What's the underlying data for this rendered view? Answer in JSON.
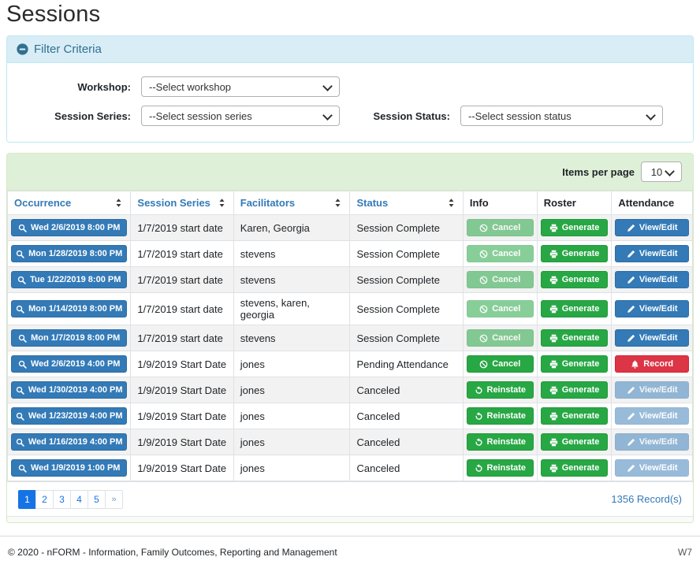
{
  "page": {
    "title": "Sessions"
  },
  "filter": {
    "title": "Filter Criteria",
    "collapse_icon": "minus-circle-icon",
    "fields": [
      {
        "label": "Workshop:",
        "value": "--Select workshop"
      },
      {
        "label": "Session Series:",
        "value": "--Select session series"
      },
      {
        "label": "Session Status:",
        "value": "--Select session status"
      }
    ]
  },
  "table": {
    "items_per_page_label": "Items per page",
    "items_per_page_value": "10",
    "columns": [
      {
        "label": "Occurrence",
        "sortable": true
      },
      {
        "label": "Session Series",
        "sortable": true
      },
      {
        "label": "Facilitators",
        "sortable": true
      },
      {
        "label": "Status",
        "sortable": true
      },
      {
        "label": "Info",
        "sortable": false
      },
      {
        "label": "Roster",
        "sortable": false
      },
      {
        "label": "Attendance",
        "sortable": false
      }
    ],
    "occurrence_icon": "search-icon",
    "rows": [
      {
        "occurrence": "Wed 2/6/2019 8:00 PM",
        "session_series": "1/7/2019 start date",
        "facilitators": "Karen, Georgia",
        "status": "Session Complete",
        "info": {
          "label": "Cancel",
          "icon": "ban-icon",
          "variant": "success-disabled"
        },
        "roster": {
          "label": "Generate",
          "icon": "printer-icon",
          "variant": "success"
        },
        "attendance": {
          "label": "View/Edit",
          "icon": "pencil-icon",
          "variant": "primary"
        }
      },
      {
        "occurrence": "Mon 1/28/2019 8:00 PM",
        "session_series": "1/7/2019 start date",
        "facilitators": "stevens",
        "status": "Session Complete",
        "info": {
          "label": "Cancel",
          "icon": "ban-icon",
          "variant": "success-disabled"
        },
        "roster": {
          "label": "Generate",
          "icon": "printer-icon",
          "variant": "success"
        },
        "attendance": {
          "label": "View/Edit",
          "icon": "pencil-icon",
          "variant": "primary"
        }
      },
      {
        "occurrence": "Tue 1/22/2019 8:00 PM",
        "session_series": "1/7/2019 start date",
        "facilitators": "stevens",
        "status": "Session Complete",
        "info": {
          "label": "Cancel",
          "icon": "ban-icon",
          "variant": "success-disabled"
        },
        "roster": {
          "label": "Generate",
          "icon": "printer-icon",
          "variant": "success"
        },
        "attendance": {
          "label": "View/Edit",
          "icon": "pencil-icon",
          "variant": "primary"
        }
      },
      {
        "occurrence": "Mon 1/14/2019 8:00 PM",
        "session_series": "1/7/2019 start date",
        "facilitators": "stevens, karen, georgia",
        "status": "Session Complete",
        "info": {
          "label": "Cancel",
          "icon": "ban-icon",
          "variant": "success-disabled"
        },
        "roster": {
          "label": "Generate",
          "icon": "printer-icon",
          "variant": "success"
        },
        "attendance": {
          "label": "View/Edit",
          "icon": "pencil-icon",
          "variant": "primary"
        }
      },
      {
        "occurrence": "Mon 1/7/2019 8:00 PM",
        "session_series": "1/7/2019 start date",
        "facilitators": "stevens",
        "status": "Session Complete",
        "info": {
          "label": "Cancel",
          "icon": "ban-icon",
          "variant": "success-disabled"
        },
        "roster": {
          "label": "Generate",
          "icon": "printer-icon",
          "variant": "success"
        },
        "attendance": {
          "label": "View/Edit",
          "icon": "pencil-icon",
          "variant": "primary"
        }
      },
      {
        "occurrence": "Wed 2/6/2019 4:00 PM",
        "session_series": "1/9/2019 Start Date",
        "facilitators": "jones",
        "status": "Pending Attendance",
        "info": {
          "label": "Cancel",
          "icon": "ban-icon",
          "variant": "success"
        },
        "roster": {
          "label": "Generate",
          "icon": "printer-icon",
          "variant": "success"
        },
        "attendance": {
          "label": "Record",
          "icon": "bell-icon",
          "variant": "danger"
        }
      },
      {
        "occurrence": "Wed 1/30/2019 4:00 PM",
        "session_series": "1/9/2019 Start Date",
        "facilitators": "jones",
        "status": "Canceled",
        "info": {
          "label": "Reinstate",
          "icon": "undo-icon",
          "variant": "success"
        },
        "roster": {
          "label": "Generate",
          "icon": "printer-icon",
          "variant": "success"
        },
        "attendance": {
          "label": "View/Edit",
          "icon": "pencil-icon",
          "variant": "primary-disabled"
        }
      },
      {
        "occurrence": "Wed 1/23/2019 4:00 PM",
        "session_series": "1/9/2019 Start Date",
        "facilitators": "jones",
        "status": "Canceled",
        "info": {
          "label": "Reinstate",
          "icon": "undo-icon",
          "variant": "success"
        },
        "roster": {
          "label": "Generate",
          "icon": "printer-icon",
          "variant": "success"
        },
        "attendance": {
          "label": "View/Edit",
          "icon": "pencil-icon",
          "variant": "primary-disabled"
        }
      },
      {
        "occurrence": "Wed 1/16/2019 4:00 PM",
        "session_series": "1/9/2019 Start Date",
        "facilitators": "jones",
        "status": "Canceled",
        "info": {
          "label": "Reinstate",
          "icon": "undo-icon",
          "variant": "success"
        },
        "roster": {
          "label": "Generate",
          "icon": "printer-icon",
          "variant": "success"
        },
        "attendance": {
          "label": "View/Edit",
          "icon": "pencil-icon",
          "variant": "primary-disabled"
        }
      },
      {
        "occurrence": "Wed 1/9/2019 1:00 PM",
        "session_series": "1/9/2019 Start Date",
        "facilitators": "jones",
        "status": "Canceled",
        "info": {
          "label": "Reinstate",
          "icon": "undo-icon",
          "variant": "success"
        },
        "roster": {
          "label": "Generate",
          "icon": "printer-icon",
          "variant": "success"
        },
        "attendance": {
          "label": "View/Edit",
          "icon": "pencil-icon",
          "variant": "primary-disabled"
        }
      }
    ],
    "pagination": {
      "pages": [
        "1",
        "2",
        "3",
        "4",
        "5"
      ],
      "active": "1",
      "next_label": "»"
    },
    "record_count": "1356 Record(s)"
  },
  "footer": {
    "copyright": "© 2020 - nFORM - Information, Family Outcomes, Reporting and Management",
    "version": "W7"
  },
  "colors": {
    "primary": "#337ab7",
    "success": "#28a745",
    "danger": "#dc3545",
    "info_header_bg": "#d9edf7",
    "info_header_text": "#31708f",
    "info_border": "#bce8f1",
    "toolbar_bg": "#dff0d8",
    "toolbar_border": "#d6e9c6",
    "pagination_active": "#1673e6",
    "row_stripe": "#f2f2f2"
  }
}
